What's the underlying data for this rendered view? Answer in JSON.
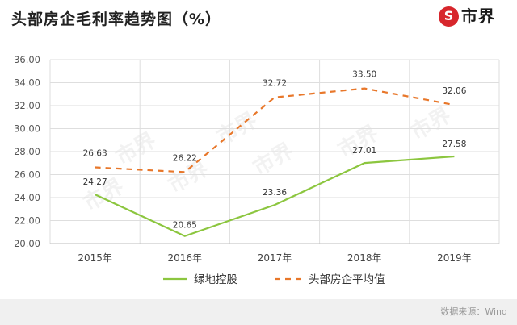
{
  "title": "头部房企毛利率趋势图（%）",
  "logo": {
    "mark": "S",
    "text": "市界"
  },
  "watermark": "市界",
  "source": "数据来源：Wind",
  "colors": {
    "series_green": "#8cc63f",
    "series_orange": "#e8772a",
    "grid": "#dedede",
    "footer_bar": "#f0f0f0"
  },
  "chart_data": {
    "type": "line",
    "categories": [
      "2015年",
      "2016年",
      "2017年",
      "2018年",
      "2019年"
    ],
    "series": [
      {
        "name": "绿地控股",
        "values": [
          24.27,
          20.65,
          23.36,
          27.01,
          27.58
        ],
        "labels": [
          "24.27",
          "20.65",
          "23.36",
          "27.01",
          "27.58"
        ],
        "color": "#8cc63f",
        "style": "solid"
      },
      {
        "name": "头部房企平均值",
        "values": [
          26.63,
          26.22,
          32.72,
          33.5,
          32.06
        ],
        "labels": [
          "26.63",
          "26.22",
          "32.72",
          "33.50",
          "32.06"
        ],
        "color": "#e8772a",
        "style": "dashed"
      }
    ],
    "ylim": [
      20,
      36
    ],
    "yticks": [
      "20.00",
      "22.00",
      "24.00",
      "26.00",
      "28.00",
      "30.00",
      "32.00",
      "34.00",
      "36.00"
    ],
    "grid": true,
    "legend": "bottom-center"
  }
}
